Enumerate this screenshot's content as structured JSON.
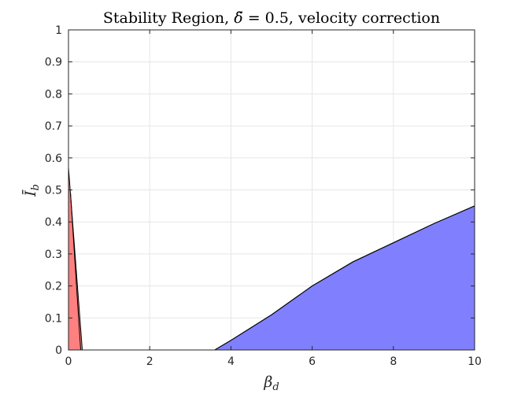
{
  "chart_data": {
    "type": "area",
    "title": "Stability Region, δ̃ = 0.5, velocity correction",
    "xlabel": "βd",
    "ylabel": "Ī b",
    "xlim": [
      0,
      10
    ],
    "ylim": [
      0,
      1
    ],
    "x_ticks": [
      "0",
      "2",
      "4",
      "6",
      "8",
      "10"
    ],
    "y_ticks": [
      "0",
      "0.1",
      "0.2",
      "0.3",
      "0.4",
      "0.5",
      "0.6",
      "0.7",
      "0.8",
      "0.9",
      "1"
    ],
    "grid": true,
    "legend": "none",
    "series": [
      {
        "color": "#ff8080",
        "outline_color": "#000000",
        "polygon": [
          [
            0,
            0
          ],
          [
            0,
            0.57
          ],
          [
            0.34,
            0
          ],
          [
            0,
            0
          ]
        ],
        "inner_curve": [
          [
            0.05,
            0.49
          ],
          [
            0.3,
            0
          ]
        ]
      },
      {
        "color": "#8080ff",
        "outline_color": "#000000",
        "upper_curve": [
          [
            3.6,
            0
          ],
          [
            3.8,
            0.015
          ],
          [
            4,
            0.03
          ],
          [
            4.5,
            0.07
          ],
          [
            5,
            0.11
          ],
          [
            6,
            0.2
          ],
          [
            7,
            0.275
          ],
          [
            8,
            0.335
          ],
          [
            9,
            0.395
          ],
          [
            10,
            0.45
          ]
        ]
      }
    ]
  }
}
